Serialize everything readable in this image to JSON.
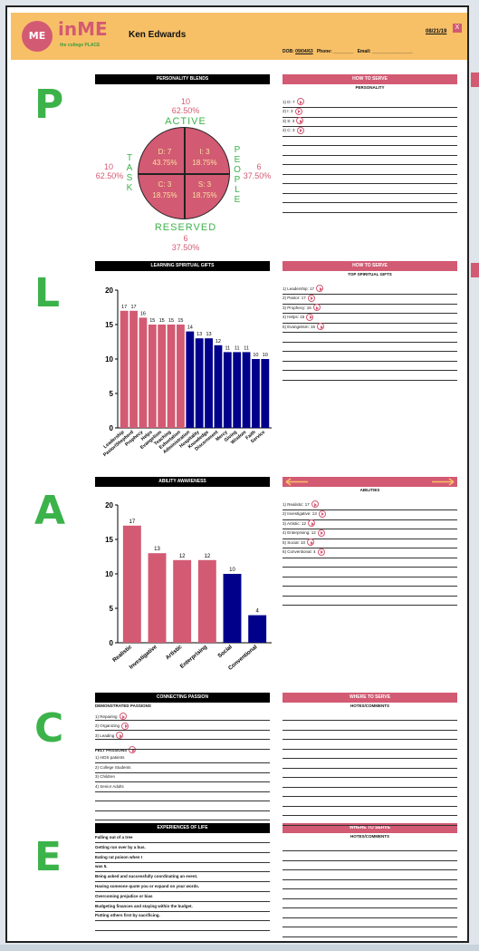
{
  "header": {
    "logo_badge": "ME",
    "logo_name": "inME",
    "logo_sub": "the college PLACE",
    "name": "Ken Edwards",
    "date": "08/21/19",
    "close": "X",
    "dob_label": "DOB:",
    "dob": "09/04/63",
    "phone_label": "Phone:",
    "email_label": "Email:"
  },
  "letters": {
    "p": "P",
    "l": "L",
    "a": "A",
    "c": "C",
    "e": "E"
  },
  "personality": {
    "title": "PERSONALITY BLENDS",
    "top_value": "10",
    "top_pct": "62.50%",
    "top_word": "ACTIVE",
    "left_value": "10",
    "left_pct": "62.50%",
    "left_word": "TASK",
    "right_value": "6",
    "right_pct": "37.50%",
    "right_word": "PEOPLE",
    "bottom_value": "6",
    "bottom_pct": "37.50%",
    "bottom_word": "RESERVED",
    "quadrants": [
      {
        "label": "D: 7",
        "pct": "43.75%"
      },
      {
        "label": "I: 3",
        "pct": "18.75%"
      },
      {
        "label": "C: 3",
        "pct": "18.75%"
      },
      {
        "label": "S: 3",
        "pct": "18.75%"
      }
    ],
    "serve_title": "HOW TO SERVE",
    "serve_sub": "PERSONALITY",
    "items": [
      "1) D: 7",
      "2) I: 3",
      "3) S: 3",
      "4) C: 3"
    ]
  },
  "gifts": {
    "serve_title": "HOW TO SERVE",
    "serve_sub": "TOP SPIRITUAL GIFTS",
    "items": [
      "1) Leadership: 17",
      "2) Pastor: 17",
      "3) Prophecy: 16",
      "4) Helps: 15",
      "5) Evangelism: 15"
    ]
  },
  "abilities": {
    "serve_sub": "ABILITIES",
    "items": [
      "1) Realistic: 17",
      "2) Investigative: 13",
      "3) Artistic: 12",
      "4) Enterprising: 12",
      "5) Social: 10",
      "6) Conventional: 4"
    ]
  },
  "passion": {
    "title": "CONNECTING PASSION",
    "demo_title": "DEMONSTRATED PASSIONS",
    "demo": [
      "1) Repairing",
      "2) Organizing",
      "3) Leading"
    ],
    "felt_title": "FELT PASSIONS",
    "felt": [
      "1) AIDS patients",
      "2) College Students",
      "3) Children",
      "4) Senior Adults"
    ],
    "where_title": "WHERE TO SERVE",
    "where_sub": "HOTES/COMMENTS"
  },
  "experiences": {
    "title": "EXPERIENCES OF LIFE",
    "items": [
      "Falling out of a tree",
      "Getting run over by a bus.",
      "Eating rat poison when I",
      "was 5.",
      "Being asked and successfully coordinating an event.",
      "Having someone quote you or expand on your words.",
      "Overcoming prejudice or bias",
      "Budgeting finances and staying within the budget.",
      "Putting others first by sacrificing."
    ],
    "where_title": "WHERE TO SERVE",
    "where_sub": "HOTES/COMMENTS"
  },
  "chart_data": [
    {
      "type": "bar",
      "title": "LEARNING SPIRITUAL GIFTS",
      "categories": [
        "Leadership",
        "Pastor/Shepherd",
        "Prophecy",
        "Helps",
        "Evangelism",
        "Teaching",
        "Exhortation",
        "Administration",
        "Hospitality",
        "Knowledge",
        "Discernment",
        "Mercy",
        "Giving",
        "Wisdom",
        "Faith",
        "Service"
      ],
      "values": [
        17,
        17,
        16,
        15,
        15,
        15,
        15,
        14,
        13,
        13,
        12,
        11,
        11,
        11,
        10,
        10
      ],
      "colors": [
        "#d35a73",
        "#d35a73",
        "#d35a73",
        "#d35a73",
        "#d35a73",
        "#d35a73",
        "#d35a73",
        "#00008b",
        "#00008b",
        "#00008b",
        "#00008b",
        "#00008b",
        "#00008b",
        "#00008b",
        "#00008b",
        "#00008b"
      ],
      "ylim": [
        0,
        20
      ],
      "yticks": [
        0,
        5,
        10,
        15,
        20
      ],
      "grid": false
    },
    {
      "type": "bar",
      "title": "ABILITY AWARENESS",
      "categories": [
        "Realistic",
        "Investigative",
        "Artistic",
        "Enterprising",
        "Social",
        "Conventional"
      ],
      "values": [
        17,
        13,
        12,
        12,
        10,
        4
      ],
      "colors": [
        "#d35a73",
        "#d35a73",
        "#d35a73",
        "#d35a73",
        "#00008b",
        "#00008b"
      ],
      "ylim": [
        0,
        20
      ],
      "yticks": [
        0,
        5,
        10,
        15,
        20
      ],
      "grid": false
    }
  ]
}
